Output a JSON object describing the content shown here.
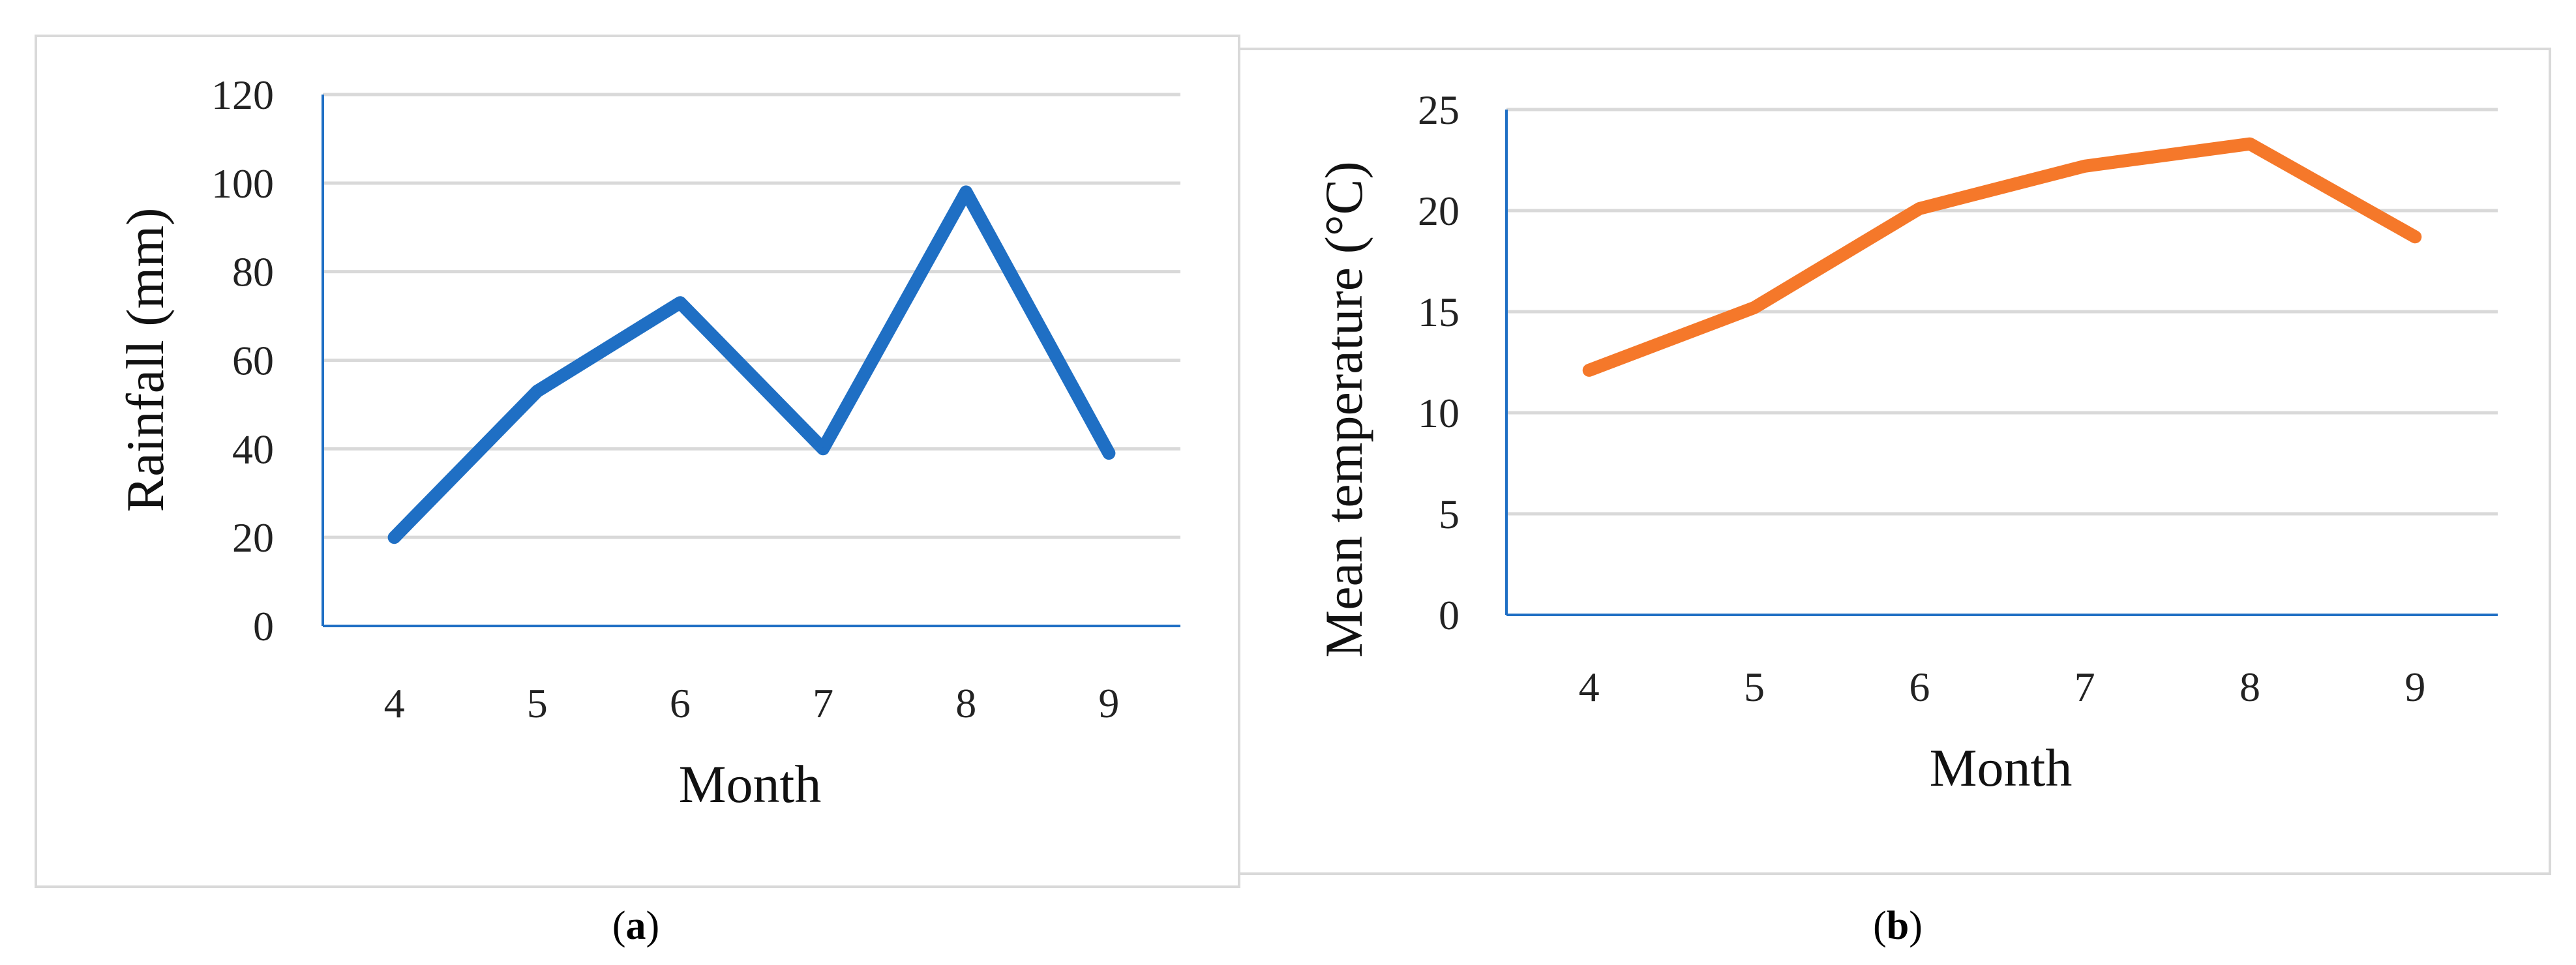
{
  "chart_data": [
    {
      "type": "line",
      "panel_label": "(a)",
      "panel_letter": "a",
      "xlabel": "Month",
      "ylabel": "Rainfall (mm)",
      "x": [
        4,
        5,
        6,
        7,
        8,
        9
      ],
      "x_tick_labels": [
        "4",
        "5",
        "6",
        "7",
        "8",
        "9"
      ],
      "y_ticks": [
        0,
        20,
        40,
        60,
        80,
        100,
        120
      ],
      "y_tick_labels": [
        "0",
        "20",
        "40",
        "60",
        "80",
        "100",
        "120"
      ],
      "ylim": [
        0,
        120
      ],
      "grid": true,
      "series": [
        {
          "values": [
            20,
            53,
            73,
            40,
            98,
            39
          ],
          "color": "#1f6fc4"
        }
      ]
    },
    {
      "type": "line",
      "panel_label": "(b)",
      "panel_letter": "b",
      "xlabel": "Month",
      "ylabel": "Mean temperature (°C)",
      "x": [
        4,
        5,
        6,
        7,
        8,
        9
      ],
      "x_tick_labels": [
        "4",
        "5",
        "6",
        "7",
        "8",
        "9"
      ],
      "y_ticks": [
        0,
        5,
        10,
        15,
        20,
        25
      ],
      "y_tick_labels": [
        "0",
        "5",
        "10",
        "15",
        "20",
        "25"
      ],
      "ylim": [
        0,
        25
      ],
      "grid": true,
      "series": [
        {
          "values": [
            12.1,
            15.2,
            20.1,
            22.2,
            23.3,
            18.7
          ],
          "color": "#f5782a"
        }
      ]
    }
  ],
  "colors": {
    "axis": "#1f6fc4",
    "grid": "#d9d9d9",
    "frame": "#d9d9d9"
  }
}
